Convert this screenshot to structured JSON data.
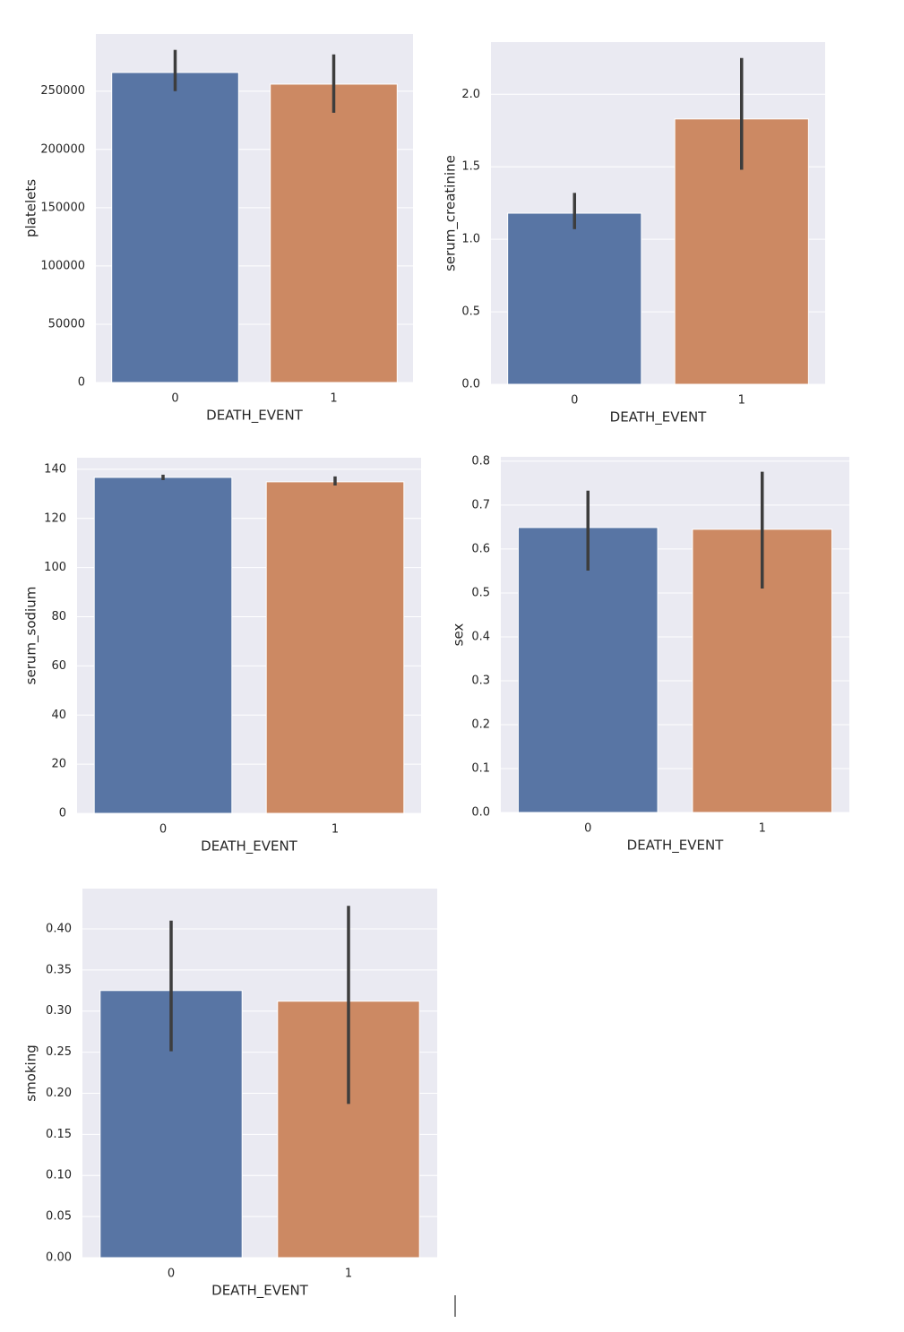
{
  "chart_data": [
    {
      "type": "bar",
      "x_label": "DEATH_EVENT",
      "y_label": "platelets",
      "categories": [
        "0",
        "1"
      ],
      "values": [
        266000,
        256000
      ],
      "ci_low": [
        250000,
        231500
      ],
      "ci_high": [
        285400,
        281500
      ],
      "colors": [
        "#5875a4",
        "#cc8963"
      ],
      "ylim": [
        0,
        299000
      ],
      "yticks": [
        0,
        50000,
        100000,
        150000,
        200000,
        250000
      ],
      "grid": true
    },
    {
      "type": "bar",
      "x_label": "DEATH_EVENT",
      "y_label": "serum_creatinine",
      "categories": [
        "0",
        "1"
      ],
      "values": [
        1.18,
        1.83
      ],
      "ci_low": [
        1.07,
        1.48
      ],
      "ci_high": [
        1.32,
        2.25
      ],
      "colors": [
        "#5875a4",
        "#cc8963"
      ],
      "ylim": [
        0,
        2.36
      ],
      "yticks": [
        {
          "value": 0,
          "label": "0.0"
        },
        0.5,
        {
          "value": 1,
          "label": "1.0"
        },
        1.5,
        {
          "value": 2,
          "label": "2.0"
        }
      ],
      "grid": true
    },
    {
      "type": "bar",
      "x_label": "DEATH_EVENT",
      "y_label": "serum_sodium",
      "categories": [
        "0",
        "1"
      ],
      "values": [
        136.7,
        134.9
      ],
      "ci_low": [
        135.6,
        133.4
      ],
      "ci_high": [
        137.8,
        137.1
      ],
      "colors": [
        "#5875a4",
        "#cc8963"
      ],
      "ylim": [
        0,
        144.7
      ],
      "yticks": [
        0,
        20,
        40,
        60,
        80,
        100,
        120,
        140
      ],
      "grid": true
    },
    {
      "type": "bar",
      "x_label": "DEATH_EVENT",
      "y_label": "sex",
      "categories": [
        "0",
        "1"
      ],
      "values": [
        0.649,
        0.645
      ],
      "ci_low": [
        0.551,
        0.51
      ],
      "ci_high": [
        0.733,
        0.776
      ],
      "colors": [
        "#5875a4",
        "#cc8963"
      ],
      "ylim": [
        0,
        0.81
      ],
      "yticks": [
        {
          "value": 0,
          "label": "0.0"
        },
        0.1,
        0.2,
        0.3,
        0.4,
        0.5,
        0.6,
        0.7,
        0.8
      ],
      "grid": true
    },
    {
      "type": "bar",
      "x_label": "DEATH_EVENT",
      "y_label": "smoking",
      "categories": [
        "0",
        "1"
      ],
      "values": [
        0.325,
        0.312
      ],
      "ci_low": [
        0.251,
        0.187
      ],
      "ci_high": [
        0.41,
        0.428
      ],
      "colors": [
        "#5875a4",
        "#cc8963"
      ],
      "ylim": [
        0,
        0.449
      ],
      "yticks": [
        {
          "value": 0,
          "label": "0.00"
        },
        0.05,
        {
          "value": 0.1,
          "label": "0.10"
        },
        0.15,
        {
          "value": 0.2,
          "label": "0.20"
        },
        0.25,
        {
          "value": 0.3,
          "label": "0.30"
        },
        0.35,
        {
          "value": 0.4,
          "label": "0.40"
        }
      ],
      "grid": true
    }
  ]
}
